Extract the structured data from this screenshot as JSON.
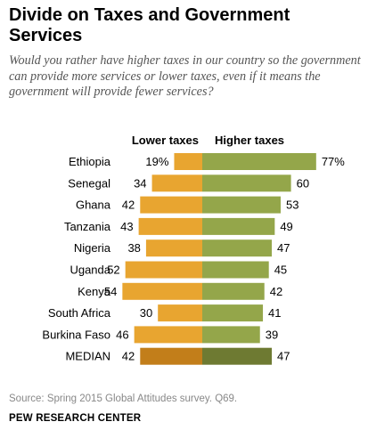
{
  "title": "Divide on Taxes and Government Services",
  "subtitle": "Would you rather have higher taxes in our country so the government can provide more services or lower taxes, even if it means the government will provide fewer services?",
  "source": "Source: Spring 2015 Global Attitudes survey. Q69.",
  "organization": "PEW RESEARCH CENTER",
  "chart_data": {
    "type": "bar",
    "orientation": "horizontal-diverging",
    "categories": [
      "Ethiopia",
      "Senegal",
      "Ghana",
      "Tanzania",
      "Nigeria",
      "Uganda",
      "Kenya",
      "South Africa",
      "Burkina Faso",
      "MEDIAN"
    ],
    "series": [
      {
        "name": "Lower taxes",
        "values": [
          19,
          34,
          42,
          43,
          38,
          52,
          54,
          30,
          46,
          42
        ],
        "labels": [
          "19%",
          "34",
          "42",
          "43",
          "38",
          "52",
          "54",
          "30",
          "46",
          "42"
        ],
        "color": "#e8a530",
        "median_color": "#c27e1a"
      },
      {
        "name": "Higher taxes",
        "values": [
          77,
          60,
          53,
          49,
          47,
          45,
          42,
          41,
          39,
          47
        ],
        "labels": [
          "77%",
          "60",
          "53",
          "49",
          "47",
          "45",
          "42",
          "41",
          "39",
          "47"
        ],
        "color": "#94a64a",
        "median_color": "#6e7a32"
      }
    ],
    "xlim": [
      0,
      80
    ]
  }
}
